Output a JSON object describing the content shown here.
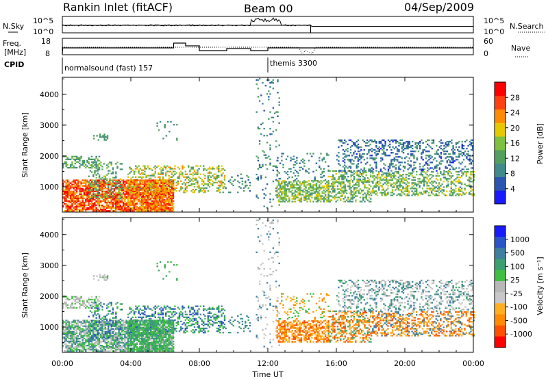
{
  "header": {
    "station": "Rankin Inlet (fitACF)",
    "beam": "Beam 00",
    "date": "04/Sep/2009"
  },
  "noise_panel": {
    "left_label": "N.Sky",
    "right_label": "N.Search",
    "left_ticks": [
      "10^5",
      "10^0"
    ],
    "right_ticks": [
      "10^5",
      "10^0"
    ]
  },
  "freq_panel": {
    "left_label_line1": "Freq.",
    "left_label_line2": "[MHz]",
    "right_label": "Nave",
    "left_ticks": [
      "18",
      "8"
    ],
    "right_ticks": [
      "60",
      "0"
    ]
  },
  "cpid_panel": {
    "label": "CPID",
    "modes": [
      {
        "name": "normalsound (fast) 157",
        "start_hour": 0
      },
      {
        "name": "themis 3300",
        "start_hour": 12
      }
    ]
  },
  "colors": {
    "power": [
      "#1a1aff",
      "#2a55b0",
      "#3f8a8a",
      "#52a060",
      "#7ec040",
      "#e6c800",
      "#ff8c00",
      "#ff4010",
      "#ff0000"
    ],
    "velocity": [
      "#ff0000",
      "#ff5000",
      "#ff8c00",
      "#ffb020",
      "#c8c8c8",
      "#b8b8b8",
      "#40c040",
      "#3aa070",
      "#3f7fa0",
      "#2a55c8",
      "#1a1aff"
    ]
  },
  "chart_data": [
    {
      "type": "heatmap",
      "quantity": "Power",
      "xlabel": "",
      "ylabel": "Slant Range [km]",
      "xlim": [
        0,
        24
      ],
      "ylim": [
        180,
        4550
      ],
      "y_ticks": [
        "1000",
        "2000",
        "3000",
        "4000"
      ],
      "colorbar_label": "Power [dB]",
      "colorbar_ticks": [
        "4",
        "8",
        "12",
        "16",
        "20",
        "24",
        "28"
      ],
      "colorbar_range": [
        0,
        32
      ]
    },
    {
      "type": "heatmap",
      "quantity": "Velocity",
      "xlabel": "Time UT",
      "ylabel": "Slant Range [km]",
      "xlim": [
        0,
        24
      ],
      "ylim": [
        180,
        4550
      ],
      "x_ticks": [
        "00:00",
        "04:00",
        "08:00",
        "12:00",
        "16:00",
        "20:00",
        "00:00"
      ],
      "y_ticks": [
        "1000",
        "2000",
        "3000",
        "4000"
      ],
      "colorbar_label": "Velocity [m s⁻¹]",
      "colorbar_ticks": [
        "1000",
        "500",
        "100",
        "25",
        "-25",
        "-100",
        "-500",
        "-1000"
      ]
    }
  ]
}
